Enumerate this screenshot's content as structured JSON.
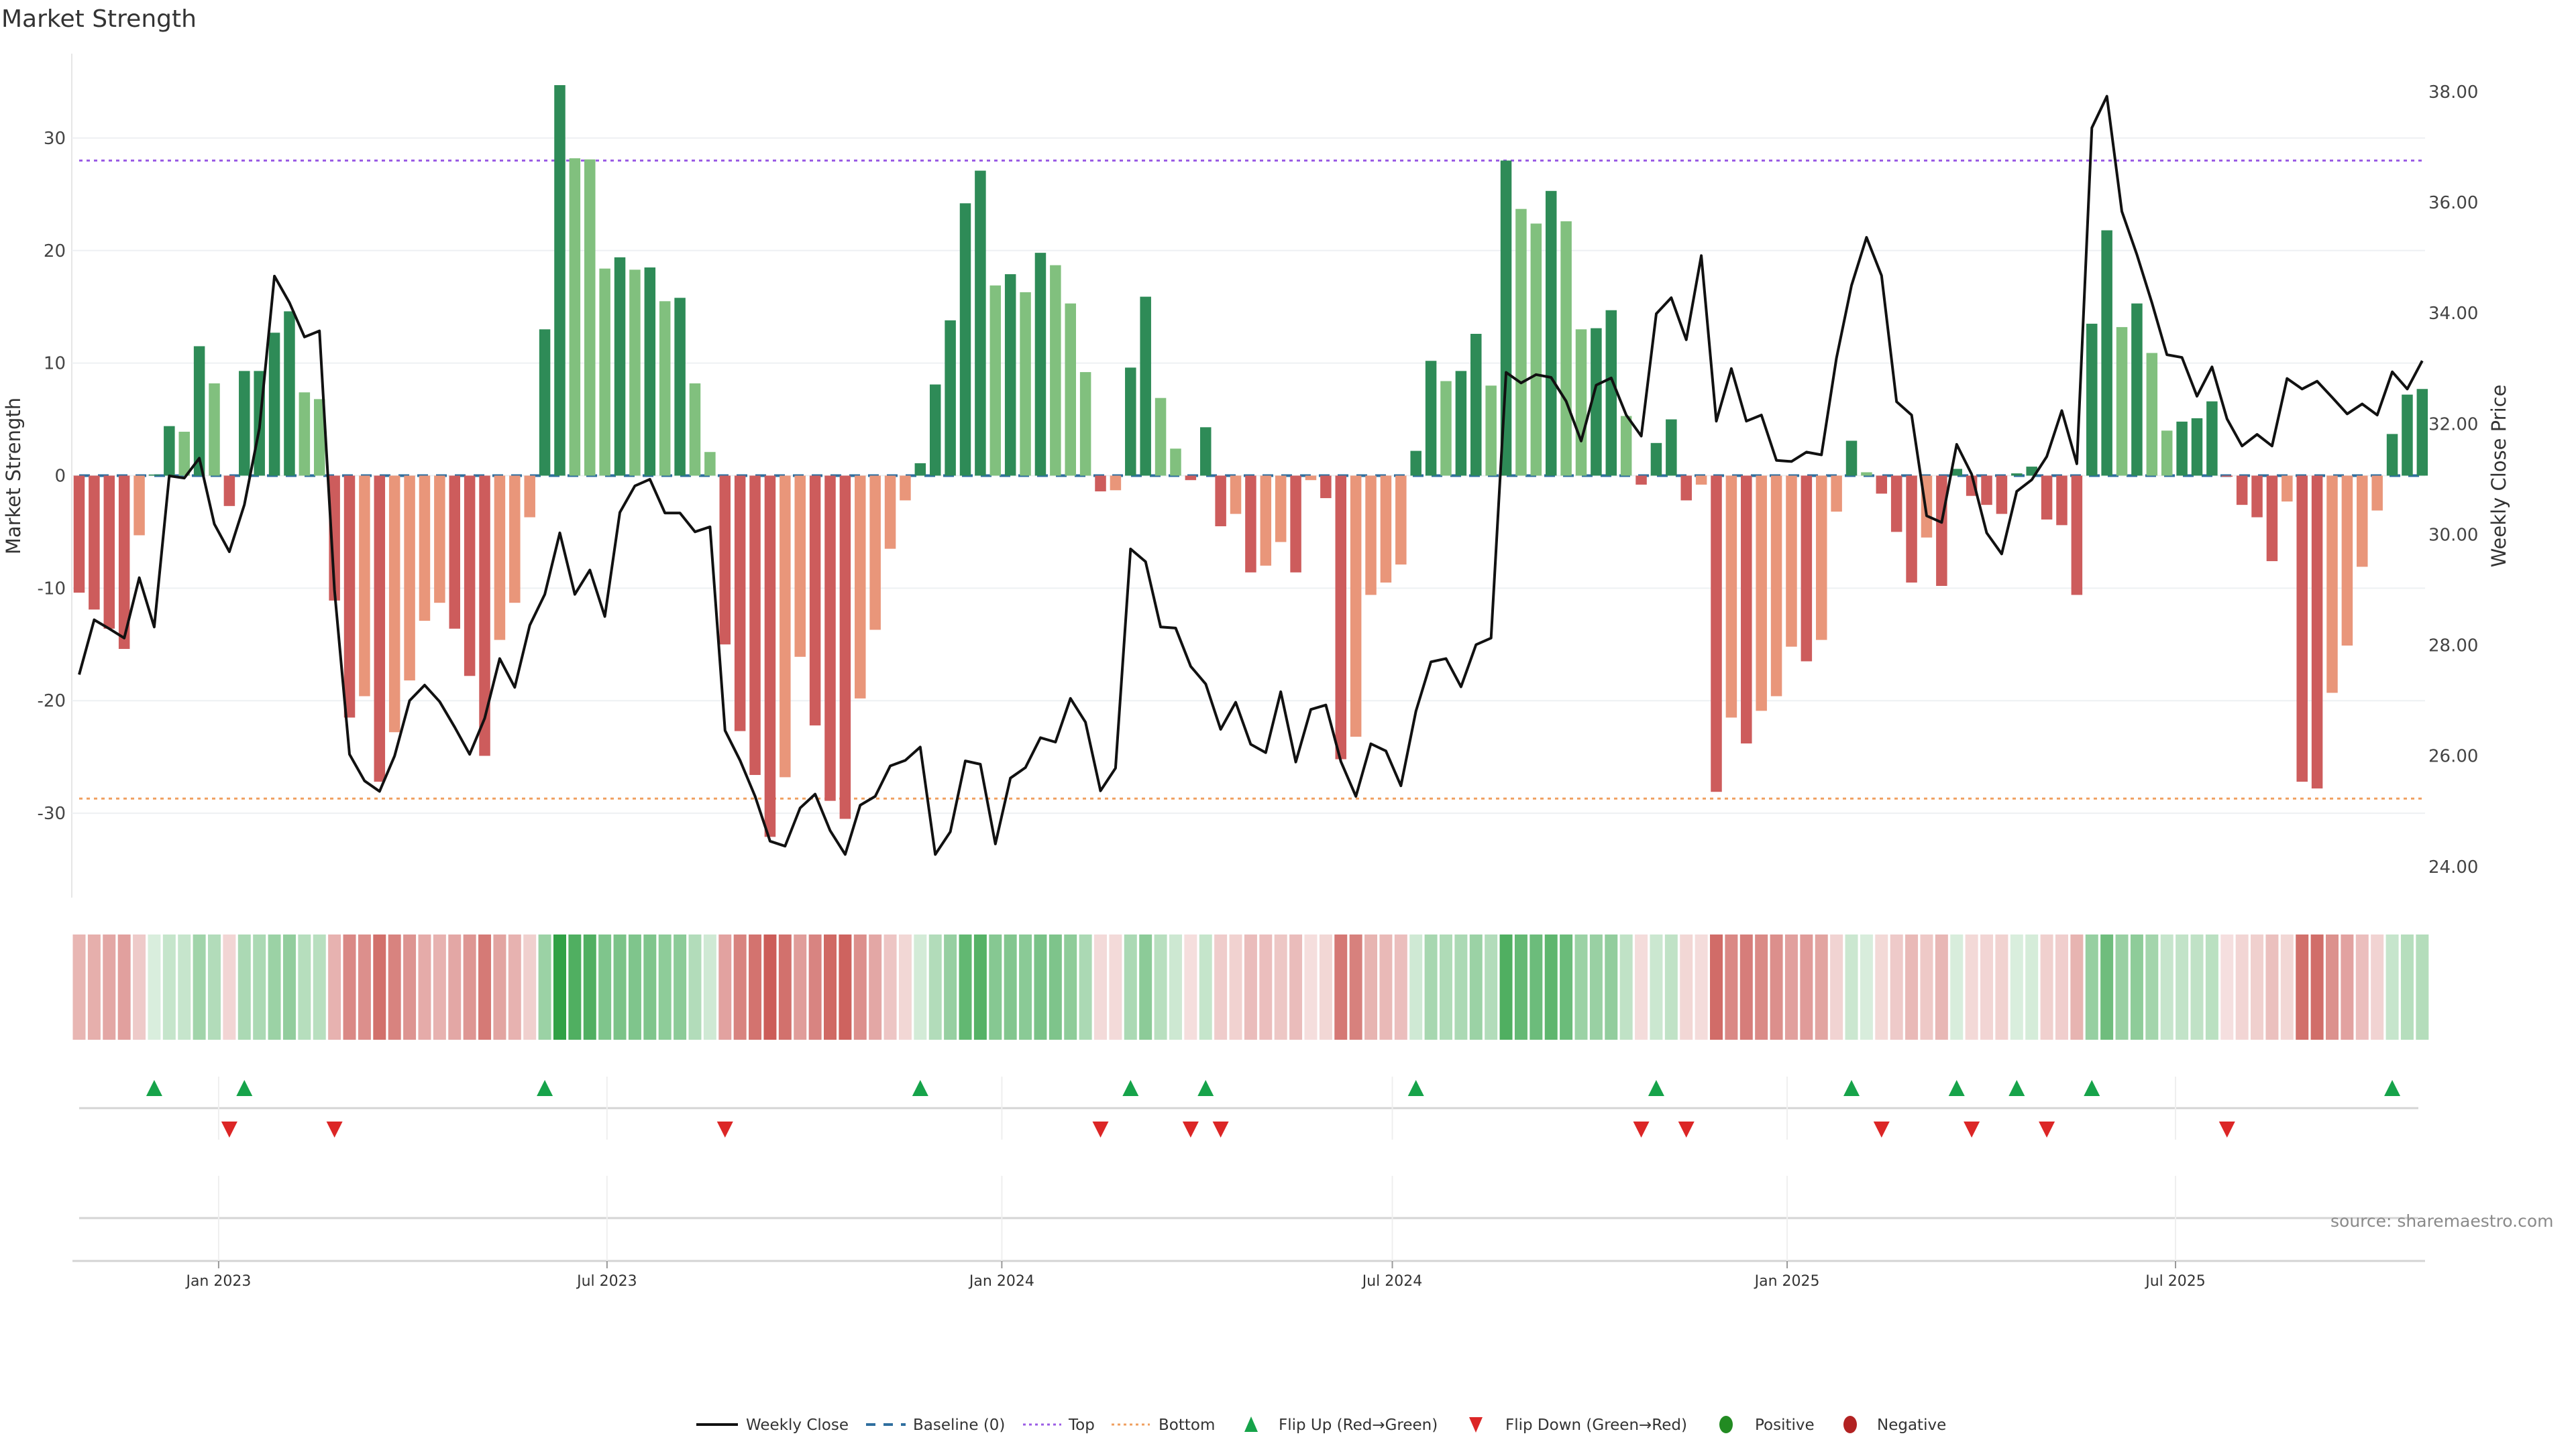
{
  "chart_data": {
    "type": "bar",
    "title": "Market Strength",
    "ylabel": "Market Strength",
    "y2label": "Weekly Close Price",
    "ylim": [
      -37.5,
      37.5
    ],
    "y2lim": [
      23.44,
      38.69
    ],
    "yticks": [
      30,
      20,
      10,
      0,
      -10,
      -20,
      -30
    ],
    "y2ticks": [
      "38.00",
      "36.00",
      "34.00",
      "32.00",
      "30.00",
      "28.00",
      "26.00",
      "24.00"
    ],
    "x_start": "2022-10-28",
    "x_step_days": 7,
    "xticks": [
      {
        "date": "2023-01-01",
        "label": "Jan 2023"
      },
      {
        "date": "2023-07-01",
        "label": "Jul 2023"
      },
      {
        "date": "2024-01-01",
        "label": "Jan 2024"
      },
      {
        "date": "2024-07-01",
        "label": "Jul 2024"
      },
      {
        "date": "2025-01-01",
        "label": "Jan 2025"
      },
      {
        "date": "2025-07-01",
        "label": "Jul 2025"
      }
    ],
    "top_level": 28,
    "bottom_level": -28.7,
    "baseline": 0,
    "strength": [
      -10.4,
      -11.9,
      -13.6,
      -15.4,
      -5.3,
      0.1,
      4.4,
      3.9,
      11.5,
      8.2,
      -2.7,
      9.3,
      9.3,
      12.7,
      14.6,
      7.4,
      6.8,
      -11.1,
      -21.5,
      -19.6,
      -27.2,
      -22.8,
      -18.2,
      -12.9,
      -11.3,
      -13.6,
      -17.8,
      -24.9,
      -14.6,
      -11.3,
      -3.7,
      13.0,
      34.7,
      28.2,
      28.1,
      18.4,
      19.4,
      18.3,
      18.5,
      15.5,
      15.8,
      8.2,
      2.1,
      -15.0,
      -22.7,
      -26.6,
      -32.1,
      -26.8,
      -16.1,
      -22.2,
      -28.9,
      -30.5,
      -19.8,
      -13.7,
      -6.5,
      -2.2,
      1.1,
      8.1,
      13.8,
      24.2,
      27.1,
      16.9,
      17.9,
      16.3,
      19.8,
      18.7,
      15.3,
      9.2,
      -1.4,
      -1.3,
      9.6,
      15.9,
      6.9,
      2.4,
      -0.4,
      4.3,
      -4.5,
      -3.4,
      -8.6,
      -8.0,
      -5.9,
      -8.6,
      -0.4,
      -2.0,
      -25.2,
      -23.2,
      -10.6,
      -9.5,
      -7.9,
      2.2,
      10.2,
      8.4,
      9.3,
      12.6,
      8.0,
      28.0,
      23.7,
      22.4,
      25.3,
      22.6,
      13.0,
      13.1,
      14.7,
      5.3,
      -0.8,
      2.9,
      5.0,
      -2.2,
      -0.8,
      -28.1,
      -21.5,
      -23.8,
      -20.9,
      -19.6,
      -15.2,
      -16.5,
      -14.6,
      -3.2,
      3.1,
      0.3,
      -1.6,
      -5.0,
      -9.5,
      -5.5,
      -9.8,
      0.6,
      -1.8,
      -2.6,
      -3.4,
      0.2,
      0.8,
      -3.9,
      -4.4,
      -10.6,
      13.5,
      21.8,
      13.2,
      15.3,
      10.9,
      4.0,
      4.8,
      5.1,
      6.6,
      -0.1,
      -2.6,
      -3.7,
      -7.6,
      -2.3,
      -27.2,
      -27.8,
      -19.3,
      -15.1,
      -8.1,
      -3.1,
      3.7,
      7.2,
      7.7
    ],
    "weekly_close": [
      27.47,
      28.46,
      28.3,
      28.13,
      29.22,
      28.33,
      31.06,
      31.02,
      31.38,
      30.19,
      29.69,
      30.54,
      31.92,
      34.67,
      34.19,
      33.57,
      33.68,
      29.0,
      26.03,
      25.55,
      25.36,
      26.0,
      27.0,
      27.28,
      26.98,
      26.52,
      26.03,
      26.68,
      27.76,
      27.24,
      28.36,
      28.92,
      30.03,
      28.92,
      29.36,
      28.52,
      30.4,
      30.88,
      31.0,
      30.39,
      30.39,
      30.05,
      30.14,
      26.46,
      25.92,
      25.27,
      24.46,
      24.37,
      25.06,
      25.31,
      24.65,
      24.22,
      25.11,
      25.27,
      25.82,
      25.92,
      26.16,
      24.22,
      24.63,
      25.91,
      25.85,
      24.41,
      25.6,
      25.79,
      26.33,
      26.25,
      27.04,
      26.61,
      25.37,
      25.78,
      29.74,
      29.51,
      28.33,
      28.31,
      27.62,
      27.3,
      26.48,
      26.97,
      26.21,
      26.06,
      27.16,
      25.89,
      26.84,
      26.92,
      25.9,
      25.27,
      26.22,
      26.09,
      25.46,
      26.81,
      27.7,
      27.76,
      27.25,
      28.01,
      28.13,
      32.93,
      32.74,
      32.89,
      32.84,
      32.41,
      31.69,
      32.7,
      32.83,
      32.16,
      31.78,
      33.99,
      34.28,
      33.52,
      35.04,
      32.05,
      33.0,
      32.05,
      32.16,
      31.34,
      31.32,
      31.49,
      31.44,
      33.19,
      34.5,
      35.37,
      34.68,
      32.4,
      32.16,
      30.34,
      30.22,
      31.63,
      31.09,
      30.03,
      29.65,
      30.78,
      30.99,
      31.41,
      32.24,
      31.28,
      37.35,
      37.92,
      35.84,
      35.06,
      34.19,
      33.25,
      33.2,
      32.5,
      33.03,
      32.09,
      31.6,
      31.81,
      31.6,
      32.82,
      32.63,
      32.77,
      32.48,
      32.18,
      32.36,
      32.16,
      32.94,
      32.63,
      33.14
    ],
    "legend": {
      "weekly_close": "Weekly Close",
      "baseline": "Baseline (0)",
      "top": "Top",
      "bottom": "Bottom",
      "flip_up": "Flip Up (Red→Green)",
      "flip_down": "Flip Down (Green→Red)",
      "positive": "Positive",
      "negative": "Negative"
    },
    "legend_position": "bottom-center",
    "source": "source: sharemaestro.com",
    "colors": {
      "pos_strong": "#2e8b57",
      "pos_weak": "#81c07e",
      "neg_strong": "#cd5c5c",
      "neg_weak": "#e9967a",
      "line": "#111111",
      "baseline": "#2f6f9f",
      "top": "#9b5de5",
      "bottom": "#f0a060",
      "flip_up": "#16a34a",
      "flip_down": "#dc2626",
      "positive": "#228b22",
      "negative": "#b22222"
    }
  }
}
